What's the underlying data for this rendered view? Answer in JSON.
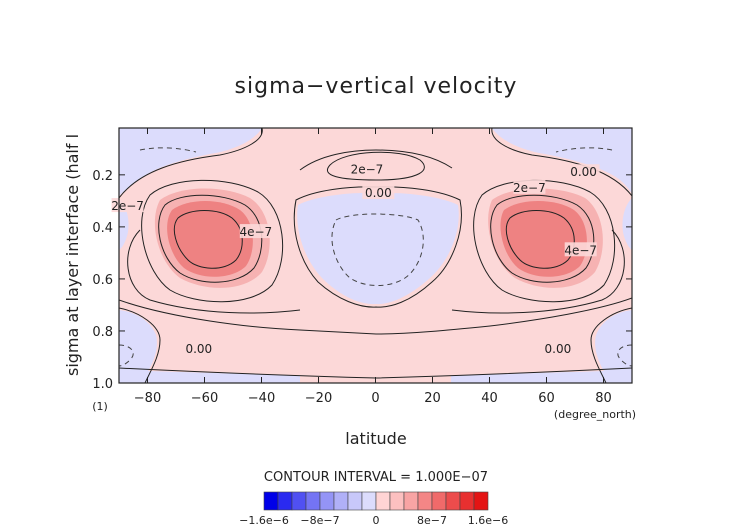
{
  "chart_data": {
    "type": "contour",
    "title": "sigma−vertical velocity",
    "xlabel": "latitude",
    "x_units": "(degree_north)",
    "ylabel": "sigma at layer interface (half l",
    "y_index_note": "(1)",
    "xlim": [
      -90,
      90
    ],
    "ylim": [
      1.0,
      0.02
    ],
    "x_ticks": [
      -80,
      -60,
      -40,
      -20,
      0,
      20,
      40,
      60,
      80
    ],
    "x_tick_labels": [
      "−80",
      "−60",
      "−40",
      "−20",
      "0",
      "20",
      "40",
      "60",
      "80"
    ],
    "y_ticks": [
      0.2,
      0.4,
      0.6,
      0.8,
      1.0
    ],
    "y_tick_labels": [
      "0.2",
      "0.4",
      "0.6",
      "0.8",
      "1.0"
    ],
    "contour_interval_text": "CONTOUR INTERVAL = 1.000E−07",
    "contour_labels": [
      {
        "text": "2e−7",
        "lat": -3,
        "sigma": 0.18
      },
      {
        "text": "0.00",
        "lat": 1,
        "sigma": 0.27
      },
      {
        "text": "2e−7",
        "lat": 54,
        "sigma": 0.25
      },
      {
        "text": "0.00",
        "lat": 73,
        "sigma": 0.19
      },
      {
        "text": "2e−7",
        "lat": -87,
        "sigma": 0.32
      },
      {
        "text": "4e−7",
        "lat": -42,
        "sigma": 0.42
      },
      {
        "text": "4e−7",
        "lat": 72,
        "sigma": 0.49
      },
      {
        "text": "0.00",
        "lat": -62,
        "sigma": 0.87
      },
      {
        "text": "0.00",
        "lat": 64,
        "sigma": 0.87
      }
    ],
    "colorbar": {
      "tick_labels": [
        "−1.6e−6",
        "−8e−7",
        "0",
        "8e−7",
        "1.6e−6"
      ],
      "levels": [
        -1.6e-06,
        -1.4e-06,
        -1.2e-06,
        -1e-06,
        -8e-07,
        -6e-07,
        -4e-07,
        -2e-07,
        0,
        2e-07,
        4e-07,
        6e-07,
        8e-07,
        1e-06,
        1.2e-06,
        1.4e-06,
        1.6e-06
      ],
      "colors": [
        "#0000e8",
        "#2a2af0",
        "#5050f2",
        "#7474f4",
        "#9494f6",
        "#b0b0f8",
        "#c8c8fa",
        "#dcdcfc",
        "#ffd4d4",
        "#fcc0c0",
        "#f8a4a4",
        "#f48686",
        "#f06a6a",
        "#ec4c4c",
        "#e83030",
        "#e41414"
      ]
    },
    "fields": {
      "positive_fill": "#fcd8d8",
      "strong_positive_fill": "#f4a0a0",
      "peak_positive_fill": "#ec7474",
      "negative_fill": "#dcdcfc"
    }
  }
}
